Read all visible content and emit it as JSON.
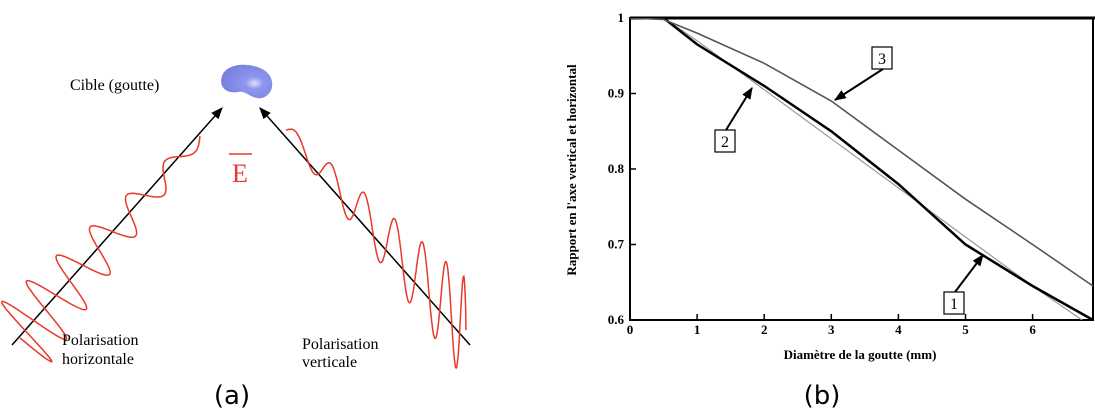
{
  "diagram": {
    "target_label": "Cible (goutte)",
    "field_label": "E",
    "left_label": [
      "Polarisation",
      "horizontale"
    ],
    "right_label": [
      "Polarisation",
      "verticale"
    ],
    "caption": "(a)"
  },
  "chart_data": {
    "type": "line",
    "caption": "(b)",
    "x_label": "Diamètre de la goutte (mm)",
    "y_label": "Rapport en l'axe vertical et horizontal",
    "x": [
      0,
      0.5,
      1,
      2,
      3,
      4,
      5,
      6,
      6.9
    ],
    "series": [
      {
        "color": "#999999",
        "values": [
          1,
          1,
          0.97,
          0.905,
          0.84,
          0.775,
          0.71,
          0.645,
          0.59
        ]
      },
      {
        "color": "#000000",
        "values": [
          1,
          1,
          0.965,
          0.91,
          0.85,
          0.78,
          0.7,
          0.645,
          0.6
        ]
      },
      {
        "color": "#555555",
        "values": [
          1,
          0.998,
          0.98,
          0.94,
          0.89,
          0.825,
          0.76,
          0.7,
          0.645
        ]
      }
    ],
    "annotations": [
      "1",
      "2",
      "3"
    ],
    "xlim": [
      0,
      6.9
    ],
    "ylim": [
      0.6,
      1
    ],
    "xticks": [
      0,
      1,
      2,
      3,
      4,
      5,
      6
    ],
    "yticks": [
      0.6,
      0.7,
      0.8,
      0.9,
      1
    ]
  }
}
